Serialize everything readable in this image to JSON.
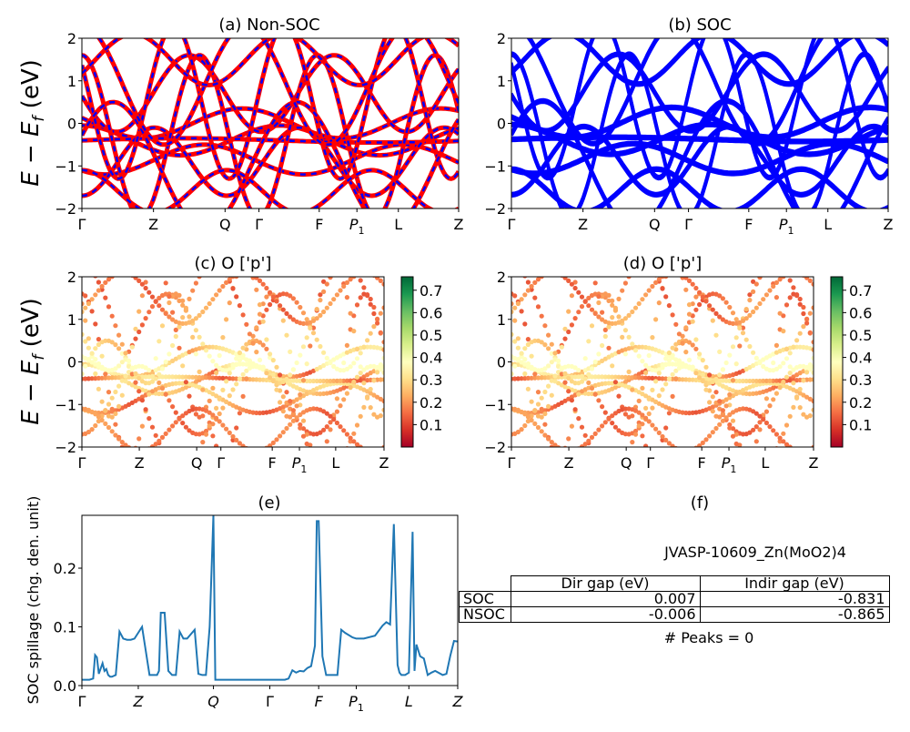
{
  "panels": {
    "a": {
      "title": "(a) Non-SOC"
    },
    "b": {
      "title": "(b) SOC"
    },
    "c": {
      "title": "(c)  O ['p']"
    },
    "d": {
      "title": "(d) O ['p']"
    },
    "e": {
      "title": "(e)"
    },
    "f": {
      "title": "(f)"
    }
  },
  "band_axis": {
    "ylabel": "E − E_f (eV)",
    "ylim": [
      -2,
      2
    ],
    "yticks": [
      "2",
      "1",
      "0",
      "−1",
      "−2"
    ],
    "kpath": [
      "Γ",
      "Z",
      "Q",
      "Γ",
      "F",
      "P₁",
      "L",
      "Z"
    ]
  },
  "colorbar": {
    "ticks": [
      "0.7",
      "0.6",
      "0.5",
      "0.4",
      "0.3",
      "0.2",
      "0.1"
    ],
    "range": [
      0.0,
      0.76
    ],
    "colormap": "RdYlGn"
  },
  "info": {
    "material": "JVASP-10609_Zn(MoO2)4",
    "columns": [
      "",
      "Dir gap (eV)",
      "Indir gap (eV)"
    ],
    "rows": [
      {
        "label": "SOC",
        "dir": "0.007",
        "indir": "-0.831"
      },
      {
        "label": "NSOC",
        "dir": "-0.006",
        "indir": "-0.865"
      }
    ],
    "peaks": "# Peaks = 0"
  },
  "colors": {
    "nonsoc": "#ff0000",
    "soc": "#0000ff",
    "spillage": "#1f77b4"
  },
  "chart_data": [
    {
      "type": "line",
      "title": "(a) Non-SOC",
      "ylabel": "E − E_f (eV)",
      "ylim": [
        -2,
        2
      ],
      "x_ticks": [
        "Γ",
        "Z",
        "Q",
        "Γ",
        "F",
        "P₁",
        "L",
        "Z"
      ],
      "series": [
        {
          "name": "Non-SOC",
          "color": "#ff0000"
        },
        {
          "name": "SOC",
          "color": "#0000ff"
        }
      ]
    },
    {
      "type": "line",
      "title": "(b) SOC",
      "ylim": [
        -2,
        2
      ],
      "x_ticks": [
        "Γ",
        "Z",
        "Q",
        "Γ",
        "F",
        "P₁",
        "L",
        "Z"
      ]
    },
    {
      "type": "scatter",
      "title": "(c)  O ['p']",
      "ylim": [
        -2,
        2
      ],
      "colorbar_range": [
        0.0,
        0.76
      ]
    },
    {
      "type": "scatter",
      "title": "(d) O ['p']",
      "ylim": [
        -2,
        2
      ],
      "colorbar_range": [
        0.0,
        0.76
      ]
    },
    {
      "type": "line",
      "title": "(e)",
      "ylabel": "SOC spillage (chg. den. unit)",
      "ylim": [
        0,
        0.29
      ],
      "yticks": [
        "0.0",
        "0.1",
        "0.2"
      ],
      "x_ticks": [
        "Γ",
        "Z",
        "Q",
        "Γ",
        "F",
        "P₁",
        "L",
        "Z"
      ],
      "x_tick_positions": [
        0,
        0.15,
        0.35,
        0.5,
        0.63,
        0.73,
        0.87,
        1.0
      ],
      "x": [
        0,
        0.02,
        0.03,
        0.035,
        0.04,
        0.045,
        0.055,
        0.06,
        0.065,
        0.07,
        0.075,
        0.08,
        0.09,
        0.1,
        0.11,
        0.12,
        0.125,
        0.13,
        0.14,
        0.16,
        0.18,
        0.2,
        0.205,
        0.21,
        0.22,
        0.23,
        0.24,
        0.245,
        0.25,
        0.26,
        0.27,
        0.28,
        0.3,
        0.31,
        0.32,
        0.33,
        0.34,
        0.35,
        0.355,
        0.36,
        0.37,
        0.38,
        0.4,
        0.44,
        0.5,
        0.54,
        0.55,
        0.56,
        0.57,
        0.58,
        0.59,
        0.6,
        0.61,
        0.62,
        0.625,
        0.63,
        0.64,
        0.65,
        0.66,
        0.68,
        0.69,
        0.7,
        0.72,
        0.73,
        0.75,
        0.78,
        0.8,
        0.81,
        0.82,
        0.83,
        0.84,
        0.845,
        0.85,
        0.86,
        0.87,
        0.88,
        0.885,
        0.89,
        0.9,
        0.91,
        0.92,
        0.93,
        0.94,
        0.96,
        0.97,
        0.98,
        0.99,
        1.0
      ],
      "y": [
        0.01,
        0.01,
        0.012,
        0.052,
        0.048,
        0.02,
        0.038,
        0.025,
        0.028,
        0.018,
        0.015,
        0.015,
        0.018,
        0.092,
        0.08,
        0.078,
        0.078,
        0.078,
        0.08,
        0.1,
        0.018,
        0.018,
        0.025,
        0.124,
        0.124,
        0.025,
        0.018,
        0.018,
        0.018,
        0.092,
        0.08,
        0.08,
        0.095,
        0.02,
        0.018,
        0.018,
        0.1,
        0.29,
        0.01,
        0.01,
        0.01,
        0.01,
        0.01,
        0.01,
        0.01,
        0.01,
        0.012,
        0.026,
        0.022,
        0.025,
        0.024,
        0.03,
        0.033,
        0.068,
        0.28,
        0.28,
        0.05,
        0.018,
        0.018,
        0.018,
        0.095,
        0.09,
        0.082,
        0.08,
        0.08,
        0.085,
        0.102,
        0.108,
        0.104,
        0.275,
        0.035,
        0.022,
        0.018,
        0.018,
        0.022,
        0.262,
        0.025,
        0.07,
        0.05,
        0.046,
        0.018,
        0.022,
        0.025,
        0.018,
        0.02,
        0.05,
        0.076,
        0.075
      ]
    }
  ]
}
